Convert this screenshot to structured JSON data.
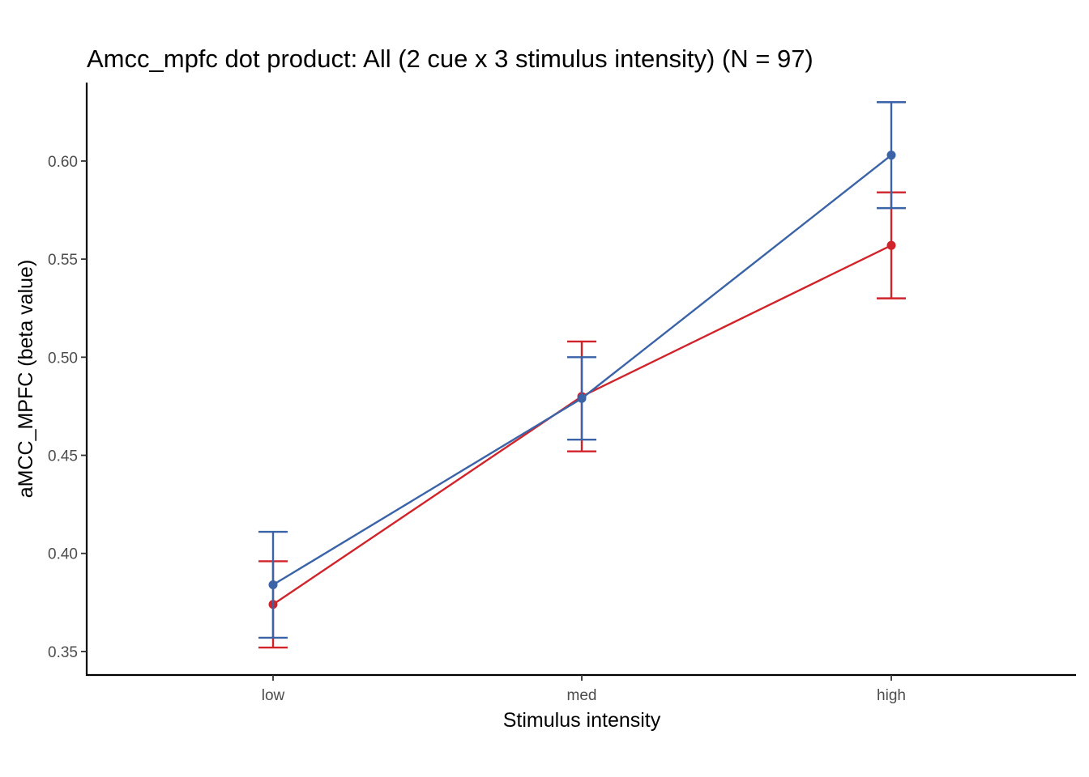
{
  "chart_data": {
    "type": "line",
    "title": "Amcc_mpfc dot product: All (2 cue x 3 stimulus intensity) (N = 97)",
    "xlabel": "Stimulus intensity",
    "ylabel": "aMCC_MPFC  (beta value)",
    "categories": [
      "low",
      "med",
      "high"
    ],
    "ylim": [
      0.338,
      0.64
    ],
    "yticks": [
      0.35,
      0.4,
      0.45,
      0.5,
      0.55,
      0.6
    ],
    "ytick_labels": [
      "0.35",
      "0.40",
      "0.45",
      "0.50",
      "0.55",
      "0.60"
    ],
    "grid": false,
    "legend": "none",
    "series": [
      {
        "color": "#d1232a",
        "values": [
          0.374,
          0.48,
          0.557
        ],
        "error_low": [
          0.352,
          0.452,
          0.53
        ],
        "error_high": [
          0.396,
          0.508,
          0.584
        ]
      },
      {
        "color": "#3a63a8",
        "values": [
          0.384,
          0.479,
          0.603
        ],
        "error_low": [
          0.357,
          0.458,
          0.576
        ],
        "error_high": [
          0.411,
          0.5,
          0.63
        ]
      }
    ]
  }
}
